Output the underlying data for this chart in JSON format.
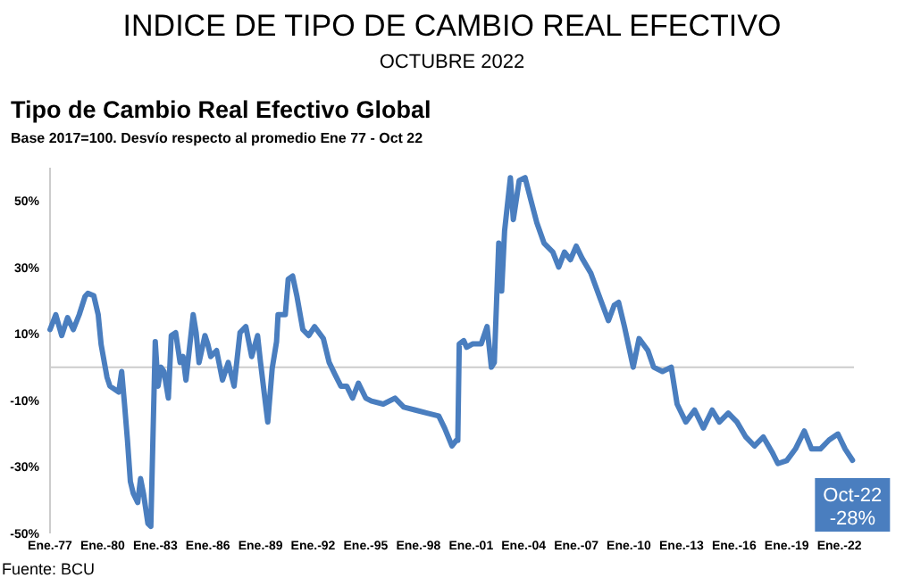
{
  "chart_data": {
    "type": "line",
    "title": "INDICE DE TIPO DE CAMBIO REAL EFECTIVO",
    "subtitle": "OCTUBRE 2022",
    "annotations": [
      "Tipo de Cambio Real Efectivo Global",
      "Base 2017=100. Desvío respecto al promedio Ene 77 -  Oct 22",
      "Fuente: BCU",
      {
        "text": "Oct-22\n-28%",
        "x": "2022-10",
        "y": -28
      }
    ],
    "xlim": [
      "1977-01",
      "2022-11"
    ],
    "ylim": [
      -50,
      60
    ],
    "xticks": [
      {
        "value": "1977-01",
        "label": "Ene.-77"
      },
      {
        "value": "1980-01",
        "label": "Ene.-80"
      },
      {
        "value": "1983-01",
        "label": "Ene.-83"
      },
      {
        "value": "1986-01",
        "label": "Ene.-86"
      },
      {
        "value": "1989-01",
        "label": "Ene.-89"
      },
      {
        "value": "1992-01",
        "label": "Ene.-92"
      },
      {
        "value": "1995-01",
        "label": "Ene.-95"
      },
      {
        "value": "1998-01",
        "label": "Ene.-98"
      },
      {
        "value": "2001-01",
        "label": "Ene.-01"
      },
      {
        "value": "2004-01",
        "label": "Ene.-04"
      },
      {
        "value": "2007-01",
        "label": "Ene.-07"
      },
      {
        "value": "2010-01",
        "label": "Ene.-10"
      },
      {
        "value": "2013-01",
        "label": "Ene.-13"
      },
      {
        "value": "2016-01",
        "label": "Ene.-16"
      },
      {
        "value": "2019-01",
        "label": "Ene.-19"
      },
      {
        "value": "2022-01",
        "label": "Ene.-22"
      }
    ],
    "yticks": [
      {
        "value": -50,
        "label": "-50%"
      },
      {
        "value": -30,
        "label": "-30%"
      },
      {
        "value": -10,
        "label": "-10%"
      },
      {
        "value": 10,
        "label": "10%"
      },
      {
        "value": 30,
        "label": "30%"
      },
      {
        "value": 50,
        "label": "50%"
      }
    ],
    "grid": false,
    "marker": "none",
    "line_style": "solid",
    "series": [
      {
        "color": "#4a7ebf",
        "x": [
          "1977-01",
          "1977-05",
          "1977-09",
          "1978-01",
          "1978-05",
          "1978-09",
          "1979-01",
          "1979-03",
          "1979-07",
          "1979-10",
          "1979-12",
          "1980-04",
          "1980-06",
          "1980-12",
          "1981-02",
          "1981-04",
          "1981-06",
          "1981-08",
          "1981-10",
          "1982-01",
          "1982-03",
          "1982-05",
          "1982-08",
          "1982-10",
          "1983-01",
          "1983-03",
          "1983-05",
          "1983-07",
          "1983-10",
          "1983-12",
          "1984-03",
          "1984-06",
          "1984-08",
          "1984-10",
          "1985-03",
          "1985-05",
          "1985-07",
          "1985-11",
          "1986-01",
          "1986-03",
          "1986-07",
          "1986-11",
          "1987-03",
          "1987-07",
          "1987-11",
          "1988-03",
          "1988-07",
          "1988-11",
          "1989-01",
          "1989-05",
          "1989-06",
          "1989-09",
          "1989-12",
          "1990-01",
          "1990-06",
          "1990-08",
          "1990-11",
          "1991-02",
          "1991-06",
          "1991-10",
          "1992-02",
          "1992-08",
          "1992-12",
          "1993-04",
          "1993-08",
          "1993-12",
          "1994-04",
          "1994-08",
          "1995-01",
          "1995-05",
          "1996-01",
          "1996-09",
          "1997-03",
          "1997-11",
          "1998-07",
          "1999-03",
          "1999-07",
          "1999-12",
          "2000-03",
          "2000-04",
          "2000-05",
          "2000-08",
          "2000-10",
          "2001-02",
          "2001-08",
          "2001-12",
          "2002-03",
          "2002-05",
          "2002-08",
          "2002-10",
          "2002-12",
          "2003-04",
          "2003-06",
          "2003-10",
          "2004-02",
          "2004-06",
          "2004-10",
          "2005-03",
          "2005-09",
          "2006-01",
          "2006-05",
          "2006-09",
          "2007-01",
          "2007-05",
          "2007-11",
          "2008-05",
          "2008-11",
          "2009-03",
          "2009-06",
          "2009-10",
          "2010-04",
          "2010-08",
          "2011-02",
          "2011-06",
          "2011-12",
          "2012-06",
          "2012-10",
          "2013-04",
          "2013-10",
          "2014-04",
          "2014-10",
          "2015-03",
          "2015-09",
          "2016-03",
          "2016-09",
          "2017-03",
          "2017-09",
          "2018-03",
          "2018-07",
          "2019-01",
          "2019-07",
          "2020-01",
          "2020-06",
          "2020-12",
          "2021-06",
          "2021-12",
          "2022-05",
          "2022-10"
        ],
        "values": [
          11.3,
          15.8,
          9.5,
          14.9,
          11.3,
          15.8,
          21.3,
          22.2,
          21.5,
          15.8,
          6.8,
          -3,
          -5.7,
          -7.5,
          -1.3,
          -11.1,
          -21.9,
          -34.4,
          -38,
          -40.7,
          -33.5,
          -38,
          -47,
          -47.9,
          7.7,
          -5.7,
          0,
          -1.3,
          -9.3,
          9.5,
          10.4,
          1.4,
          3.2,
          -3.9,
          15.8,
          10.4,
          1.4,
          9.5,
          6.8,
          3.2,
          5,
          -3.9,
          1.4,
          -5.7,
          10.4,
          12.2,
          3.2,
          9.5,
          1.4,
          -12.9,
          -16.5,
          -0.4,
          7.7,
          15.8,
          15.8,
          26.5,
          27.4,
          21.1,
          11.3,
          9.5,
          12.2,
          8.6,
          1.4,
          -2.2,
          -5.7,
          -5.7,
          -9.3,
          -4.8,
          -9.3,
          -10.2,
          -11.1,
          -9.3,
          -12,
          -12.9,
          -13.8,
          -14.7,
          -18.3,
          -23.7,
          -22,
          -22,
          7,
          8,
          6,
          7,
          7,
          12.2,
          0,
          1.4,
          37.3,
          22.9,
          41,
          57,
          44.4,
          56.1,
          57,
          50.2,
          43.5,
          37.3,
          34.6,
          30.1,
          34.6,
          32.3,
          36.4,
          32.8,
          28.3,
          21.1,
          14,
          18.6,
          19.5,
          12.2,
          0,
          8.6,
          5,
          0,
          -1.3,
          0,
          -11.1,
          -16.5,
          -12.9,
          -18.3,
          -12.9,
          -16.5,
          -13.8,
          -16.5,
          -21,
          -23.7,
          -21,
          -25.5,
          -29,
          -28.1,
          -24.6,
          -19.2,
          -24.6,
          -24.6,
          -21.9,
          -20.1,
          -24.6,
          -28
        ]
      }
    ]
  }
}
